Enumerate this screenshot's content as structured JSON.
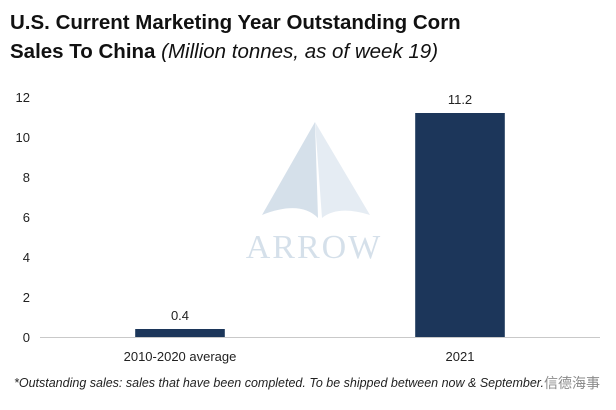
{
  "title": {
    "line1": "U.S. Current Marketing Year Outstanding Corn",
    "line2_main": "Sales To China",
    "line2_sub": "(Million tonnes, as of week 19)"
  },
  "chart_data": {
    "type": "bar",
    "categories": [
      "2010-2020 average",
      "2021"
    ],
    "values": [
      0.4,
      11.2
    ],
    "data_labels": [
      "0.4",
      "11.2"
    ],
    "title": "U.S. Current Marketing Year Outstanding Corn Sales To China (Million tonnes, as of week 19)",
    "xlabel": "",
    "ylabel": "",
    "ylim": [
      0,
      12
    ],
    "yticks": [
      0,
      2,
      4,
      6,
      8,
      10,
      12
    ],
    "grid": false,
    "bar_color": "#1c365a"
  },
  "watermark": {
    "logo_text": "ARROW",
    "logo_color": "#c8d6e4"
  },
  "footnote": "*Outstanding sales: sales that have been completed. To be shipped between now & September.",
  "corner_watermark": "信德海事"
}
